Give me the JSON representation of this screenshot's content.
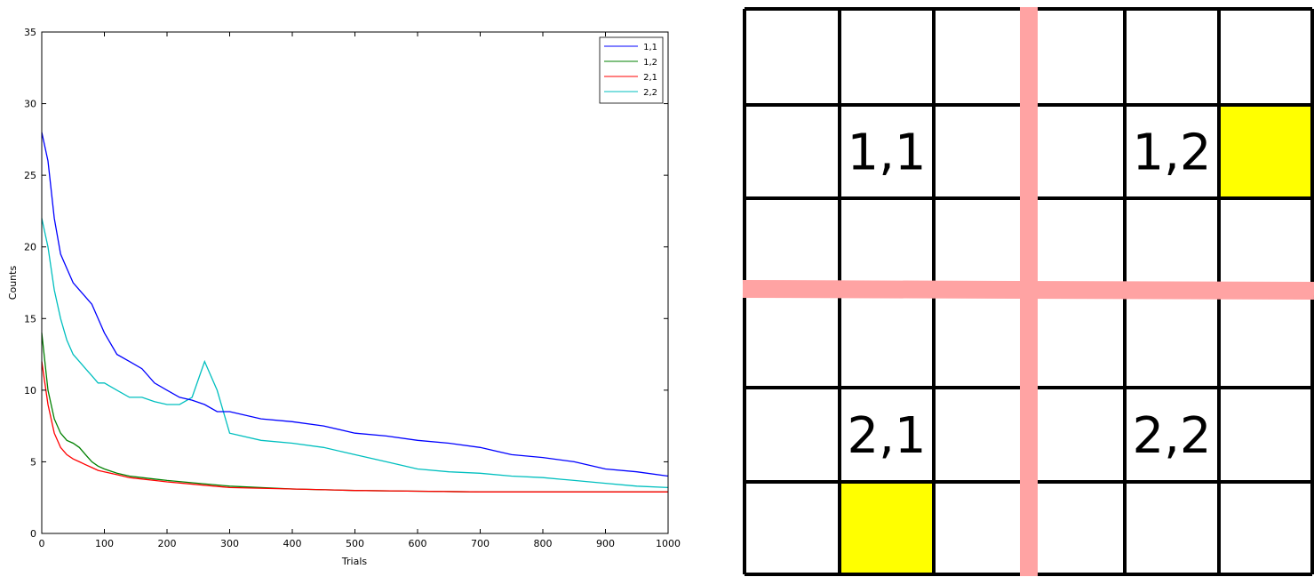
{
  "chart_data": {
    "type": "line",
    "title": "",
    "xlabel": "Trials",
    "ylabel": "Counts",
    "xlim": [
      0,
      1000
    ],
    "ylim": [
      0,
      35
    ],
    "xticks": [
      0,
      100,
      200,
      300,
      400,
      500,
      600,
      700,
      800,
      900,
      1000
    ],
    "yticks": [
      0,
      5,
      10,
      15,
      20,
      25,
      30,
      35
    ],
    "grid": false,
    "legend_position": "top-right",
    "series": [
      {
        "name": "1,1",
        "color": "#0000ff",
        "x": [
          0,
          10,
          20,
          30,
          40,
          50,
          60,
          70,
          80,
          90,
          100,
          120,
          140,
          160,
          180,
          200,
          220,
          240,
          260,
          280,
          300,
          350,
          400,
          450,
          500,
          550,
          600,
          650,
          700,
          750,
          800,
          850,
          900,
          950,
          1000
        ],
        "values": [
          28,
          26,
          22,
          19.5,
          18.5,
          17.5,
          17,
          16.5,
          16,
          15,
          14,
          12.5,
          12,
          11.5,
          10.5,
          10,
          9.5,
          9.3,
          9,
          8.5,
          8.5,
          8,
          7.8,
          7.5,
          7,
          6.8,
          6.5,
          6.3,
          6,
          5.5,
          5.3,
          5,
          4.5,
          4.3,
          4
        ]
      },
      {
        "name": "1,2",
        "color": "#008000",
        "x": [
          0,
          10,
          20,
          30,
          40,
          50,
          60,
          70,
          80,
          90,
          100,
          120,
          140,
          160,
          180,
          200,
          250,
          300,
          400,
          500,
          600,
          700,
          800,
          900,
          1000
        ],
        "values": [
          14,
          10,
          8,
          7,
          6.5,
          6.3,
          6,
          5.5,
          5,
          4.7,
          4.5,
          4.2,
          4,
          3.9,
          3.8,
          3.7,
          3.5,
          3.3,
          3.1,
          3,
          2.95,
          2.9,
          2.9,
          2.9,
          2.9
        ]
      },
      {
        "name": "2,1",
        "color": "#ff0000",
        "x": [
          0,
          10,
          20,
          30,
          40,
          50,
          60,
          70,
          80,
          90,
          100,
          120,
          140,
          160,
          180,
          200,
          250,
          300,
          400,
          500,
          600,
          700,
          800,
          900,
          1000
        ],
        "values": [
          12,
          9,
          7,
          6,
          5.5,
          5.2,
          5,
          4.8,
          4.6,
          4.4,
          4.3,
          4.1,
          3.9,
          3.8,
          3.7,
          3.6,
          3.4,
          3.2,
          3.1,
          3,
          2.95,
          2.9,
          2.9,
          2.9,
          2.9
        ]
      },
      {
        "name": "2,2",
        "color": "#00bfbf",
        "x": [
          0,
          10,
          20,
          30,
          40,
          50,
          60,
          70,
          80,
          90,
          100,
          120,
          140,
          160,
          180,
          200,
          220,
          240,
          260,
          280,
          300,
          350,
          400,
          450,
          500,
          550,
          600,
          650,
          700,
          750,
          800,
          850,
          900,
          950,
          1000
        ],
        "values": [
          22,
          20,
          17,
          15,
          13.5,
          12.5,
          12,
          11.5,
          11,
          10.5,
          10.5,
          10,
          9.5,
          9.5,
          9.2,
          9,
          9,
          9.5,
          12,
          10,
          7,
          6.5,
          6.3,
          6,
          5.5,
          5,
          4.5,
          4.3,
          4.2,
          4,
          3.9,
          3.7,
          3.5,
          3.3,
          3.2
        ]
      }
    ]
  },
  "grid_diagram": {
    "rows": 6,
    "cols": 6,
    "labels": [
      {
        "text": "1,1",
        "row": 1,
        "col": 1
      },
      {
        "text": "1,2",
        "row": 1,
        "col": 4
      },
      {
        "text": "2,1",
        "row": 4,
        "col": 1
      },
      {
        "text": "2,2",
        "row": 4,
        "col": 4
      }
    ],
    "highlighted_cells": [
      {
        "row": 1,
        "col": 5,
        "color": "#ffff00"
      },
      {
        "row": 5,
        "col": 1,
        "color": "#ffff00"
      }
    ],
    "divider_color": "#ffa3a3",
    "line_color": "#000000"
  }
}
